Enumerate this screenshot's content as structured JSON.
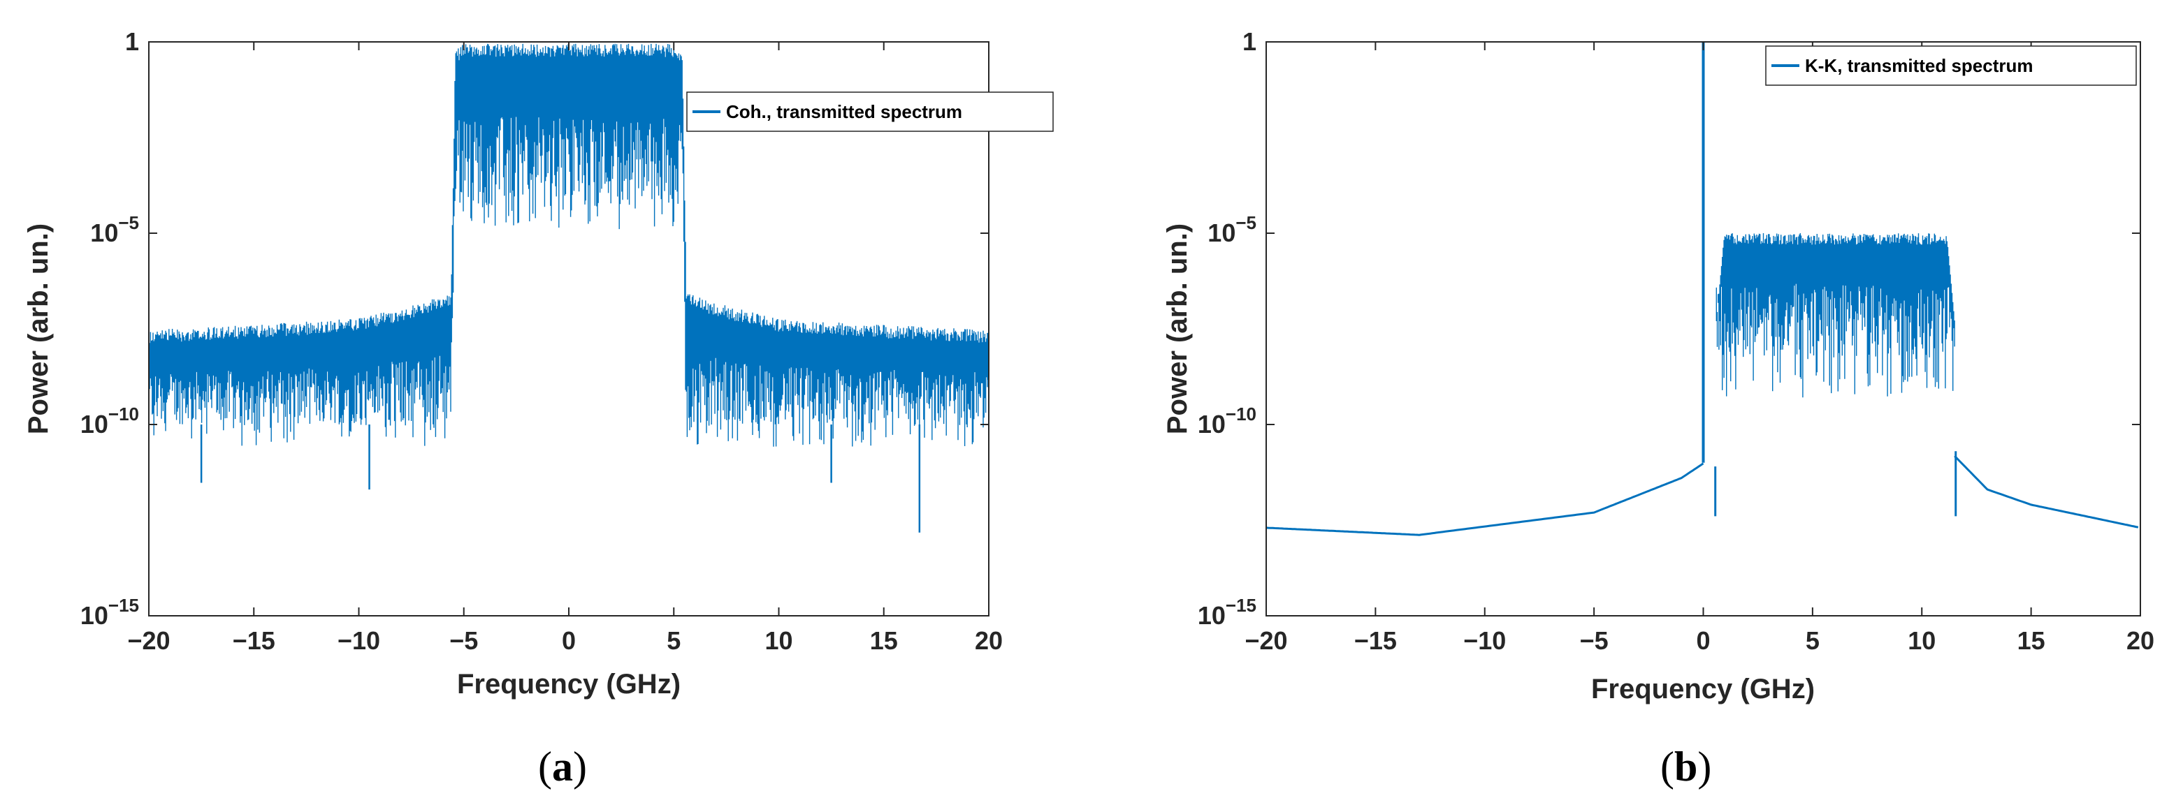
{
  "colors": {
    "series": "#0072BD",
    "axis": "#262626",
    "background": "#ffffff"
  },
  "chart_data": [
    {
      "panel": "(a)",
      "panel_parts": [
        "(",
        "a",
        ")"
      ],
      "type": "line",
      "xlabel": "Frequency (GHz)",
      "ylabel": "Power (arb. un.)",
      "xlim": [
        -20,
        20
      ],
      "ylim": [
        1e-15,
        1
      ],
      "yscale": "log",
      "xticks": [
        "−20",
        "−15",
        "−10",
        "−5",
        "0",
        "5",
        "10",
        "15",
        "20"
      ],
      "yticks": [
        {
          "base": "10",
          "exp": "−15"
        },
        {
          "base": "10",
          "exp": "−10"
        },
        {
          "base": "10",
          "exp": "−5"
        },
        {
          "base": "1",
          "exp": ""
        }
      ],
      "legend": {
        "position": "top-right",
        "entries": [
          "Coh., transmitted spectrum"
        ]
      },
      "series": [
        {
          "name": "Coh., transmitted spectrum",
          "kind": "noisy-spectrum",
          "x": [
            -20,
            -15,
            -10,
            -7,
            -5.6,
            -5.4,
            -5,
            0,
            5,
            5.4,
            5.6,
            7,
            10,
            15,
            20
          ],
          "upper": [
            3e-08,
            4e-08,
            6e-08,
            1.5e-07,
            3e-07,
            0.6,
            0.9,
            0.9,
            0.9,
            0.6,
            3e-07,
            1.5e-07,
            6e-08,
            4e-08,
            3e-08
          ],
          "lower": [
            1e-10,
            1e-10,
            1e-10,
            1e-10,
            1e-10,
            0.0001,
            5e-05,
            5e-05,
            5e-05,
            0.0001,
            1e-10,
            1e-10,
            1e-10,
            1e-10,
            1e-10
          ],
          "min_spikes": [
            {
              "x": -17.5,
              "y": 3e-12
            },
            {
              "x": -9.5,
              "y": 2e-12
            },
            {
              "x": 12.5,
              "y": 3e-12
            },
            {
              "x": 16.7,
              "y": 1.5e-13
            }
          ]
        }
      ]
    },
    {
      "panel": "(b)",
      "panel_parts": [
        "(",
        "b",
        ")"
      ],
      "type": "line",
      "xlabel": "Frequency (GHz)",
      "ylabel": "Power (arb. un.)",
      "xlim": [
        -20,
        20
      ],
      "ylim": [
        1e-15,
        1
      ],
      "yscale": "log",
      "xticks": [
        "−20",
        "−15",
        "−10",
        "−5",
        "0",
        "5",
        "10",
        "15",
        "20"
      ],
      "yticks": [
        {
          "base": "10",
          "exp": "−15"
        },
        {
          "base": "10",
          "exp": "−10"
        },
        {
          "base": "10",
          "exp": "−5"
        },
        {
          "base": "1",
          "exp": ""
        }
      ],
      "legend": {
        "position": "top-right",
        "entries": [
          "K-K, transmitted spectrum"
        ]
      },
      "series": [
        {
          "name": "K-K, transmitted spectrum",
          "kind": "carrier-plus-band",
          "carrier": {
            "x": 0,
            "y": 1
          },
          "floor": {
            "x": [
              -20,
              -13,
              -5,
              -1,
              0.05
            ],
            "y": [
              2e-13,
              1.3e-13,
              5e-13,
              4e-12,
              1e-11
            ]
          },
          "floor_right": {
            "x": [
              11.5,
              13,
              15,
              20
            ],
            "y": [
              1.5e-11,
              2e-12,
              8e-13,
              2e-13
            ]
          },
          "band": {
            "x0": 0.6,
            "x1": 11.5,
            "upper": 1e-05,
            "lower": 5e-09
          }
        }
      ]
    }
  ]
}
